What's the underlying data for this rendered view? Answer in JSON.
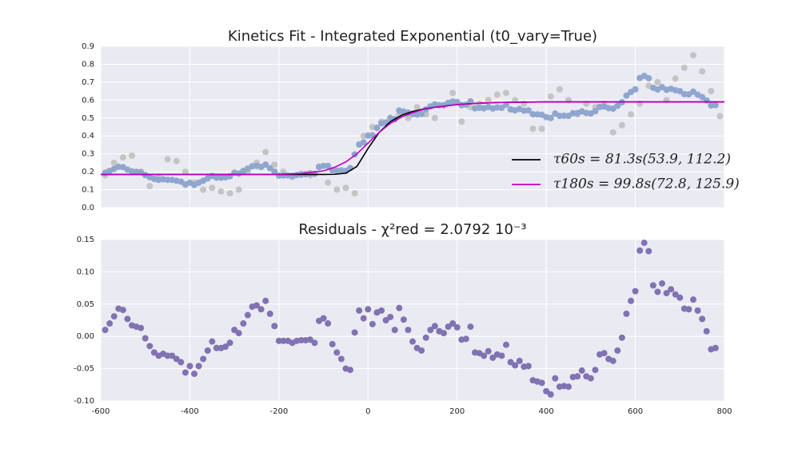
{
  "chart_data": [
    {
      "type": "scatter",
      "title": "Kinetics Fit - Integrated Exponential (t0_vary=True)",
      "xlim": [
        -600,
        800
      ],
      "xticks": [
        -600,
        -400,
        -200,
        0,
        200,
        400,
        600,
        800
      ],
      "show_xtick_labels": false,
      "ylim": [
        0,
        0.9
      ],
      "yticks": [
        {
          "value": 0,
          "label": "0.0"
        },
        0.1,
        0.2,
        0.3,
        0.4,
        0.5,
        0.6,
        0.7,
        0.8,
        0.9
      ],
      "grid": true,
      "legend": "center right",
      "series": [
        {
          "type": "scatter",
          "color": "#c4c4c4",
          "x": [
            -590,
            -570,
            -550,
            -530,
            -510,
            -490,
            -470,
            -450,
            -430,
            -410,
            -390,
            -370,
            -350,
            -330,
            -310,
            -290,
            -270,
            -250,
            -230,
            -210,
            -190,
            -170,
            -150,
            -130,
            -110,
            -90,
            -70,
            -50,
            -30,
            -10,
            10,
            30,
            50,
            70,
            90,
            110,
            130,
            150,
            170,
            190,
            210,
            230,
            250,
            270,
            290,
            310,
            330,
            350,
            370,
            390,
            410,
            430,
            450,
            470,
            490,
            510,
            530,
            550,
            570,
            590,
            610,
            630,
            650,
            670,
            690,
            710,
            730,
            750,
            770,
            790
          ],
          "values": [
            0.18,
            0.25,
            0.28,
            0.29,
            0.2,
            0.12,
            0.17,
            0.27,
            0.26,
            0.2,
            0.14,
            0.1,
            0.11,
            0.09,
            0.08,
            0.1,
            0.2,
            0.25,
            0.31,
            0.24,
            0.2,
            0.17,
            0.19,
            0.18,
            0.23,
            0.14,
            0.1,
            0.11,
            0.08,
            0.4,
            0.45,
            0.48,
            0.5,
            0.52,
            0.5,
            0.56,
            0.52,
            0.5,
            0.57,
            0.64,
            0.48,
            0.56,
            0.58,
            0.6,
            0.63,
            0.64,
            0.6,
            0.58,
            0.44,
            0.44,
            0.62,
            0.66,
            0.6,
            0.52,
            0.58,
            0.56,
            0.58,
            0.42,
            0.46,
            0.52,
            0.58,
            0.68,
            0.7,
            0.6,
            0.72,
            0.78,
            0.85,
            0.76,
            0.65,
            0.51
          ]
        },
        {
          "type": "scatter",
          "color": "#8fa6cf",
          "x": [
            -590,
            -580,
            -570,
            -560,
            -550,
            -540,
            -530,
            -520,
            -510,
            -500,
            -490,
            -480,
            -470,
            -460,
            -450,
            -440,
            -430,
            -420,
            -410,
            -400,
            -390,
            -380,
            -370,
            -360,
            -350,
            -340,
            -330,
            -320,
            -310,
            -300,
            -290,
            -280,
            -270,
            -260,
            -250,
            -240,
            -230,
            -220,
            -210,
            -200,
            -190,
            -180,
            -170,
            -160,
            -150,
            -140,
            -130,
            -120,
            -110,
            -100,
            -90,
            -80,
            -70,
            -60,
            -50,
            -40,
            -30,
            -20,
            -10,
            0,
            10,
            20,
            30,
            40,
            50,
            60,
            70,
            80,
            90,
            100,
            110,
            120,
            130,
            140,
            150,
            160,
            170,
            180,
            190,
            200,
            210,
            220,
            230,
            240,
            250,
            260,
            270,
            280,
            290,
            300,
            310,
            320,
            330,
            340,
            350,
            360,
            370,
            380,
            390,
            400,
            410,
            420,
            430,
            440,
            450,
            460,
            470,
            480,
            490,
            500,
            510,
            520,
            530,
            540,
            550,
            560,
            570,
            580,
            590,
            600,
            610,
            620,
            630,
            640,
            650,
            660,
            670,
            680,
            690,
            700,
            710,
            720,
            730,
            740,
            750,
            760,
            770,
            780
          ],
          "values": [
            0.195,
            0.205,
            0.216,
            0.228,
            0.226,
            0.212,
            0.202,
            0.2,
            0.198,
            0.182,
            0.17,
            0.16,
            0.155,
            0.158,
            0.155,
            0.155,
            0.15,
            0.145,
            0.129,
            0.139,
            0.127,
            0.139,
            0.15,
            0.163,
            0.177,
            0.167,
            0.167,
            0.169,
            0.175,
            0.195,
            0.19,
            0.205,
            0.218,
            0.231,
            0.233,
            0.227,
            0.24,
            0.22,
            0.201,
            0.178,
            0.179,
            0.18,
            0.178,
            0.182,
            0.184,
            0.187,
            0.191,
            0.189,
            0.226,
            0.233,
            0.233,
            0.209,
            0.206,
            0.208,
            0.205,
            0.221,
            0.297,
            0.352,
            0.364,
            0.402,
            0.403,
            0.445,
            0.47,
            0.475,
            0.5,
            0.494,
            0.542,
            0.536,
            0.53,
            0.522,
            0.519,
            0.522,
            0.548,
            0.565,
            0.576,
            0.571,
            0.571,
            0.584,
            0.592,
            0.589,
            0.572,
            0.574,
            0.593,
            0.554,
            0.557,
            0.554,
            0.562,
            0.553,
            0.559,
            0.557,
            0.575,
            0.548,
            0.543,
            0.55,
            0.541,
            0.543,
            0.521,
            0.52,
            0.518,
            0.505,
            0.5,
            0.525,
            0.512,
            0.513,
            0.512,
            0.527,
            0.528,
            0.537,
            0.528,
            0.525,
            0.538,
            0.562,
            0.564,
            0.555,
            0.552,
            0.568,
            0.588,
            0.625,
            0.645,
            0.66,
            0.723,
            0.735,
            0.722,
            0.669,
            0.659,
            0.672,
            0.657,
            0.663,
            0.655,
            0.65,
            0.633,
            0.632,
            0.647,
            0.63,
            0.617,
            0.598,
            0.57,
            0.572
          ]
        },
        {
          "type": "line",
          "name": "τ60s = 81.3s(53.9, 112.2)",
          "color": "#000000",
          "x": [
            -600,
            -400,
            -200,
            -150,
            -100,
            -75,
            -50,
            -25,
            0,
            25,
            50,
            75,
            100,
            125,
            150,
            200,
            250,
            300,
            400,
            600,
            800
          ],
          "values": [
            0.185,
            0.185,
            0.185,
            0.185,
            0.185,
            0.186,
            0.192,
            0.23,
            0.33,
            0.42,
            0.48,
            0.515,
            0.537,
            0.55,
            0.56,
            0.575,
            0.583,
            0.587,
            0.59,
            0.59,
            0.59
          ]
        },
        {
          "type": "line",
          "name": "τ180s = 99.8s(72.8, 125.9)",
          "color": "#bf00bf",
          "x": [
            -600,
            -400,
            -200,
            -150,
            -100,
            -75,
            -50,
            -25,
            0,
            25,
            50,
            75,
            100,
            125,
            150,
            200,
            250,
            300,
            400,
            600,
            800
          ],
          "values": [
            0.185,
            0.185,
            0.186,
            0.19,
            0.205,
            0.225,
            0.255,
            0.3,
            0.36,
            0.42,
            0.47,
            0.505,
            0.53,
            0.548,
            0.56,
            0.575,
            0.583,
            0.587,
            0.59,
            0.59,
            0.59
          ]
        }
      ]
    },
    {
      "type": "scatter",
      "title": "Residuals - χ²red = 2.0792 10⁻³",
      "xlim": [
        -600,
        800
      ],
      "xticks": [
        -600,
        -400,
        -200,
        0,
        200,
        400,
        600,
        800
      ],
      "ylim": [
        -0.1,
        0.15
      ],
      "yticks": [
        {
          "value": -0.1,
          "label": "-0.10"
        },
        -0.05,
        {
          "value": 0,
          "label": "0.00"
        },
        0.05,
        {
          "value": 0.1,
          "label": "0.10"
        },
        0.15
      ],
      "grid": true,
      "color": "#8172b2",
      "x": [
        -590,
        -580,
        -570,
        -560,
        -550,
        -540,
        -530,
        -520,
        -510,
        -500,
        -490,
        -480,
        -470,
        -460,
        -450,
        -440,
        -430,
        -420,
        -410,
        -400,
        -390,
        -380,
        -370,
        -360,
        -350,
        -340,
        -330,
        -320,
        -310,
        -300,
        -290,
        -280,
        -270,
        -260,
        -250,
        -240,
        -230,
        -220,
        -210,
        -200,
        -190,
        -180,
        -170,
        -160,
        -150,
        -140,
        -130,
        -120,
        -110,
        -100,
        -90,
        -80,
        -70,
        -60,
        -50,
        -40,
        -30,
        -20,
        -10,
        0,
        10,
        20,
        30,
        40,
        50,
        60,
        70,
        80,
        90,
        100,
        110,
        120,
        130,
        140,
        150,
        160,
        170,
        180,
        190,
        200,
        210,
        220,
        230,
        240,
        250,
        260,
        270,
        280,
        290,
        300,
        310,
        320,
        330,
        340,
        350,
        360,
        370,
        380,
        390,
        400,
        410,
        420,
        430,
        440,
        450,
        460,
        470,
        480,
        490,
        500,
        510,
        520,
        530,
        540,
        550,
        560,
        570,
        580,
        590,
        600,
        610,
        620,
        630,
        640,
        650,
        660,
        670,
        680,
        690,
        700,
        710,
        720,
        730,
        740,
        750,
        760,
        770,
        780
      ],
      "values": [
        0.01,
        0.02,
        0.031,
        0.043,
        0.041,
        0.027,
        0.017,
        0.015,
        0.013,
        -0.003,
        -0.015,
        -0.025,
        -0.03,
        -0.027,
        -0.03,
        -0.03,
        -0.035,
        -0.04,
        -0.056,
        -0.046,
        -0.058,
        -0.046,
        -0.035,
        -0.022,
        -0.008,
        -0.018,
        -0.018,
        -0.016,
        -0.01,
        0.01,
        0.005,
        0.02,
        0.033,
        0.046,
        0.048,
        0.042,
        0.055,
        0.035,
        0.016,
        -0.007,
        -0.007,
        -0.007,
        -0.01,
        -0.007,
        -0.006,
        -0.006,
        -0.005,
        -0.01,
        0.024,
        0.028,
        0.02,
        -0.012,
        -0.025,
        -0.035,
        -0.05,
        -0.052,
        0.006,
        0.04,
        0.028,
        0.042,
        0.019,
        0.037,
        0.04,
        0.025,
        0.03,
        0.01,
        0.044,
        0.026,
        0.01,
        -0.008,
        -0.018,
        -0.022,
        -0.002,
        0.01,
        0.016,
        0.008,
        0.005,
        0.015,
        0.02,
        0.014,
        -0.005,
        -0.004,
        0.015,
        -0.025,
        -0.026,
        -0.03,
        -0.023,
        -0.033,
        -0.028,
        -0.03,
        -0.013,
        -0.04,
        -0.045,
        -0.038,
        -0.047,
        -0.046,
        -0.068,
        -0.07,
        -0.072,
        -0.085,
        -0.09,
        -0.065,
        -0.078,
        -0.077,
        -0.078,
        -0.063,
        -0.062,
        -0.053,
        -0.062,
        -0.065,
        -0.052,
        -0.028,
        -0.026,
        -0.035,
        -0.038,
        -0.022,
        -0.002,
        0.035,
        0.055,
        0.07,
        0.133,
        0.145,
        0.132,
        0.079,
        0.069,
        0.082,
        0.067,
        0.073,
        0.065,
        0.06,
        0.043,
        0.042,
        0.057,
        0.04,
        0.027,
        0.008,
        -0.02,
        -0.018
      ]
    }
  ]
}
